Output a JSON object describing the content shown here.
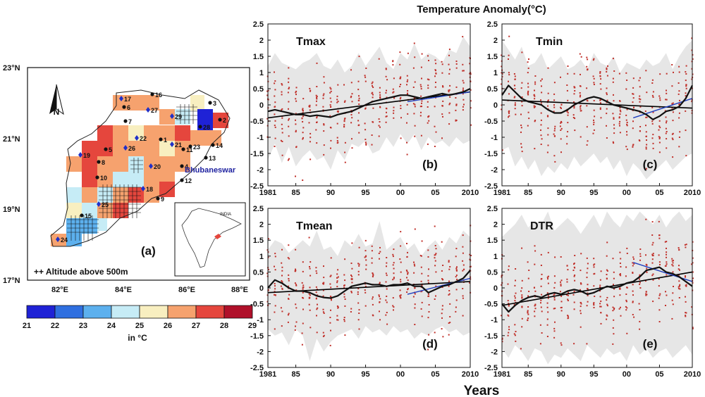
{
  "figure_title": "Temperature Anomaly(°C)",
  "x_axis_title": "Years",
  "map": {
    "panel_label": "(a)",
    "lat_ticks": [
      "23°N",
      "21°N",
      "19°N",
      "17°N"
    ],
    "lon_ticks": [
      "82°E",
      "84°E",
      "86°E",
      "88°E"
    ],
    "north_label": "N",
    "city_label": "Bhubaneswar",
    "inset_label": "INDIA",
    "legend_note": "++ Altitude above 500m",
    "colorbar_ticks": [
      "21",
      "22",
      "23",
      "24",
      "25",
      "26",
      "27",
      "28",
      "29"
    ],
    "colorbar_unit": "in °C",
    "colorbar_colors": [
      "#1f22d6",
      "#2f6fe0",
      "#5cb0ee",
      "#c6ecf6",
      "#f8efc0",
      "#f6a26e",
      "#e5463d",
      "#b0102a"
    ],
    "station_numbers": [
      "1",
      "2",
      "3",
      "4",
      "5",
      "6",
      "7",
      "8",
      "9",
      "10",
      "11",
      "12",
      "13",
      "14",
      "15",
      "16",
      "17",
      "18",
      "19",
      "20",
      "21",
      "22",
      "23",
      "24",
      "25",
      "26",
      "27",
      "28",
      "29"
    ]
  },
  "colors": {
    "red_dots": "#c0302a",
    "trend": "#000000",
    "recent_trend": "#1f3fbf",
    "band": "#e6e6e6"
  },
  "chart_data": [
    {
      "type": "line",
      "label": "Tmax",
      "panel": "(b)",
      "x": [
        1981,
        1982,
        1983,
        1984,
        1985,
        1986,
        1987,
        1988,
        1989,
        1990,
        1991,
        1992,
        1993,
        1994,
        1995,
        1996,
        1997,
        1998,
        1999,
        2000,
        2001,
        2002,
        2003,
        2004,
        2005,
        2006,
        2007,
        2008,
        2009,
        2010
      ],
      "smoothed": [
        -0.2,
        -0.15,
        -0.2,
        -0.25,
        -0.3,
        -0.3,
        -0.35,
        -0.32,
        -0.35,
        -0.38,
        -0.3,
        -0.25,
        -0.2,
        -0.1,
        0.0,
        0.1,
        0.15,
        0.2,
        0.25,
        0.3,
        0.3,
        0.25,
        0.2,
        0.25,
        0.3,
        0.35,
        0.3,
        0.35,
        0.4,
        0.5
      ],
      "linear_trend": [
        -0.4,
        0.4
      ],
      "recent_trend": {
        "x": [
          2001,
          2010
        ],
        "y": [
          0.1,
          0.4
        ]
      },
      "band_upper": [
        1.2,
        1.6,
        1.3,
        1.2,
        1.1,
        1.3,
        1.4,
        1.6,
        1.2,
        1.1,
        1.4,
        1.0,
        1.2,
        1.6,
        1.2,
        1.5,
        1.8,
        1.3,
        1.1,
        1.6,
        1.4,
        1.9,
        1.4,
        1.6,
        1.5,
        1.3,
        1.7,
        1.6,
        2.1,
        1.8
      ],
      "band_lower": [
        -1.7,
        -1.2,
        -1.8,
        -1.3,
        -1.9,
        -1.6,
        -1.4,
        -1.7,
        -1.6,
        -2.0,
        -1.4,
        -1.7,
        -1.2,
        -1.3,
        -1.1,
        -1.5,
        -1.4,
        -1.0,
        -1.3,
        -0.9,
        -1.2,
        -0.9,
        -1.4,
        -1.0,
        -1.2,
        -1.1,
        -1.3,
        -1.0,
        -1.2,
        -1.1
      ],
      "ylim": [
        -2.5,
        2.5
      ],
      "yticks": [
        "2.5",
        "2",
        "1.5",
        "1",
        "0.5",
        "0",
        "-0.5",
        "-1",
        "-1.5",
        "-2",
        "-2.5"
      ],
      "xticks": [
        "1981",
        "85",
        "90",
        "95",
        "00",
        "05",
        "2010"
      ],
      "seed": 11
    },
    {
      "type": "line",
      "label": "Tmin",
      "panel": "(c)",
      "x": [
        1981,
        1982,
        1983,
        1984,
        1985,
        1986,
        1987,
        1988,
        1989,
        1990,
        1991,
        1992,
        1993,
        1994,
        1995,
        1996,
        1997,
        1998,
        1999,
        2000,
        2001,
        2002,
        2003,
        2004,
        2005,
        2006,
        2007,
        2008,
        2009,
        2010
      ],
      "smoothed": [
        0.3,
        0.6,
        0.4,
        0.2,
        0.1,
        0.05,
        0.0,
        -0.15,
        -0.25,
        -0.25,
        -0.15,
        0.0,
        0.1,
        0.2,
        0.25,
        0.2,
        0.1,
        0.0,
        -0.05,
        -0.1,
        -0.15,
        -0.2,
        -0.3,
        -0.45,
        -0.35,
        -0.2,
        -0.15,
        -0.05,
        0.2,
        0.6
      ],
      "linear_trend": [
        0.15,
        -0.1
      ],
      "recent_trend": {
        "x": [
          2001,
          2010
        ],
        "y": [
          -0.4,
          0.2
        ]
      },
      "band_upper": [
        2.0,
        1.7,
        1.4,
        1.8,
        1.2,
        1.3,
        1.6,
        1.1,
        1.3,
        1.5,
        1.1,
        1.2,
        1.4,
        1.1,
        1.6,
        1.3,
        1.2,
        1.5,
        1.0,
        1.3,
        1.2,
        1.1,
        1.4,
        1.2,
        1.3,
        1.6,
        1.1,
        1.5,
        1.8,
        2.0
      ],
      "band_lower": [
        -1.4,
        -1.3,
        -1.9,
        -1.6,
        -2.0,
        -1.7,
        -2.2,
        -1.9,
        -2.1,
        -1.8,
        -2.0,
        -1.6,
        -1.9,
        -1.7,
        -1.5,
        -1.8,
        -1.6,
        -2.0,
        -1.7,
        -2.2,
        -1.8,
        -2.0,
        -2.3,
        -2.1,
        -1.9,
        -1.7,
        -2.0,
        -1.8,
        -1.6,
        -1.5
      ],
      "ylim": [
        -2.5,
        2.5
      ],
      "yticks": [
        "2.5",
        "2",
        "1.5",
        "1",
        "0.5",
        "0",
        "-0.5",
        "-1",
        "-1.5",
        "-2",
        "-2.5"
      ],
      "xticks": [
        "1981",
        "85",
        "90",
        "95",
        "00",
        "05",
        "2010"
      ],
      "seed": 23
    },
    {
      "type": "line",
      "label": "Tmean",
      "panel": "(d)",
      "x": [
        1981,
        1982,
        1983,
        1984,
        1985,
        1986,
        1987,
        1988,
        1989,
        1990,
        1991,
        1992,
        1993,
        1994,
        1995,
        1996,
        1997,
        1998,
        1999,
        2000,
        2001,
        2002,
        2003,
        2004,
        2005,
        2006,
        2007,
        2008,
        2009,
        2010
      ],
      "smoothed": [
        0.0,
        0.25,
        0.15,
        0.0,
        -0.1,
        -0.1,
        -0.15,
        -0.25,
        -0.3,
        -0.32,
        -0.25,
        -0.1,
        0.05,
        0.1,
        0.15,
        0.1,
        0.1,
        0.05,
        0.1,
        0.1,
        0.15,
        0.05,
        0.05,
        -0.15,
        -0.05,
        0.05,
        0.1,
        0.2,
        0.3,
        0.55
      ],
      "linear_trend": [
        -0.15,
        0.2
      ],
      "recent_trend": {
        "x": [
          2001,
          2010
        ],
        "y": [
          -0.2,
          0.3
        ]
      },
      "band_upper": [
        1.2,
        1.5,
        1.4,
        1.1,
        1.3,
        1.5,
        1.3,
        1.8,
        1.2,
        1.3,
        1.0,
        1.5,
        1.3,
        1.7,
        1.3,
        1.4,
        2.1,
        1.2,
        1.4,
        1.6,
        1.2,
        1.4,
        1.0,
        1.3,
        1.5,
        1.2,
        1.6,
        1.4,
        1.8,
        1.6
      ],
      "band_lower": [
        -1.3,
        -1.5,
        -1.4,
        -1.8,
        -1.3,
        -1.5,
        -2.3,
        -1.6,
        -2.0,
        -1.7,
        -1.5,
        -1.4,
        -1.3,
        -1.6,
        -1.2,
        -1.4,
        -1.3,
        -1.5,
        -1.2,
        -1.4,
        -1.3,
        -1.6,
        -1.4,
        -1.5,
        -1.3,
        -1.2,
        -1.4,
        -1.3,
        -1.5,
        -1.4
      ],
      "ylim": [
        -2.5,
        2.5
      ],
      "yticks": [
        "2.5",
        "2",
        "1.5",
        "1",
        "0.5",
        "0",
        "-0.5",
        "-1",
        "-1.5",
        "-2",
        "-2.5"
      ],
      "xticks": [
        "1981",
        "85",
        "90",
        "95",
        "00",
        "05",
        "2010"
      ],
      "seed": 37
    },
    {
      "type": "line",
      "label": "DTR",
      "panel": "(e)",
      "x": [
        1981,
        1982,
        1983,
        1984,
        1985,
        1986,
        1987,
        1988,
        1989,
        1990,
        1991,
        1992,
        1993,
        1994,
        1995,
        1996,
        1997,
        1998,
        1999,
        2000,
        2001,
        2002,
        2003,
        2004,
        2005,
        2006,
        2007,
        2008,
        2009,
        2010
      ],
      "smoothed": [
        -0.5,
        -0.75,
        -0.55,
        -0.4,
        -0.3,
        -0.25,
        -0.3,
        -0.2,
        -0.15,
        -0.2,
        -0.1,
        -0.05,
        -0.1,
        -0.2,
        -0.15,
        -0.05,
        0.05,
        0.0,
        0.05,
        0.15,
        0.2,
        0.35,
        0.55,
        0.6,
        0.65,
        0.5,
        0.45,
        0.35,
        0.2,
        0.05
      ],
      "linear_trend": [
        -0.55,
        0.5
      ],
      "recent_trend": {
        "x": [
          2001,
          2010
        ],
        "y": [
          0.8,
          0.2
        ]
      },
      "band_upper": [
        1.6,
        1.8,
        2.0,
        2.3,
        1.9,
        2.1,
        2.0,
        2.4,
        1.8,
        2.0,
        2.2,
        2.0,
        1.7,
        2.0,
        2.3,
        1.9,
        2.4,
        2.1,
        1.9,
        2.3,
        2.1,
        2.4,
        2.2,
        2.0,
        2.3,
        1.9,
        2.2,
        2.4,
        2.1,
        2.3
      ],
      "band_lower": [
        -1.9,
        -2.2,
        -1.8,
        -2.0,
        -2.3,
        -1.9,
        -2.0,
        -2.4,
        -2.1,
        -2.2,
        -1.9,
        -2.1,
        -2.3,
        -1.8,
        -2.0,
        -2.2,
        -1.9,
        -2.1,
        -2.0,
        -2.3,
        -1.8,
        -2.1,
        -1.9,
        -2.2,
        -2.0,
        -1.9,
        -2.2,
        -2.0,
        -1.8,
        -2.1
      ],
      "ylim": [
        -2.5,
        2.5
      ],
      "yticks": [
        "2.5",
        "2",
        "1.5",
        "1",
        "0.5",
        "0",
        "-0.5",
        "-1",
        "-1.5",
        "-2",
        "-2.5"
      ],
      "xticks": [
        "1981",
        "85",
        "90",
        "95",
        "00",
        "05",
        "2010"
      ],
      "seed": 51
    }
  ]
}
